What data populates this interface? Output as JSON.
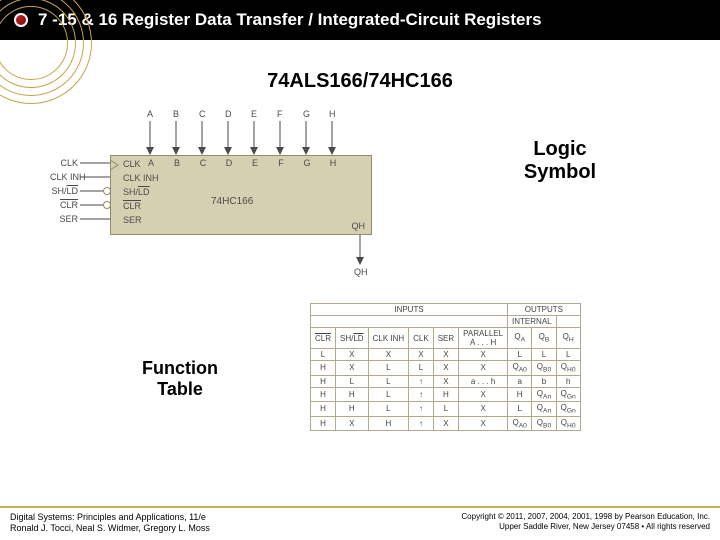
{
  "title": "7 -15  & 16 Register Data Transfer / Integrated-Circuit Registers",
  "chip_title": "74ALS166/74HC166",
  "part_name": "74HC166",
  "logic_label_l1": "Logic",
  "logic_label_l2": "Symbol",
  "fn_label_l1": "Function",
  "fn_label_l2": "Table",
  "top_pins": [
    "A",
    "B",
    "C",
    "D",
    "E",
    "F",
    "G",
    "H"
  ],
  "left_pins_ext": [
    "CLK",
    "CLK INH",
    "SH/LD",
    "CLR",
    "SER"
  ],
  "left_pins_int": [
    "CLK",
    "CLK INH",
    "SH/LD",
    "CLR",
    "SER"
  ],
  "overline_left": [
    false,
    false,
    true,
    true,
    false
  ],
  "out_sig": "QH",
  "colors": {
    "title_bg": "#000000",
    "title_fg": "#ffffff",
    "chip_fill": "#d6d0b3",
    "chip_border": "#938b6a",
    "ring": "#c9a24a",
    "table_border": "#b0aa8d",
    "bullet_a": "#b22222",
    "bullet_b": "#7a0000"
  },
  "ftable": {
    "group_inputs": "INPUTS",
    "group_outputs": "OUTPUTS",
    "group_internal": "INTERNAL",
    "inner_headers": [
      "CLR",
      "SH/LD",
      "CLK INH",
      "CLK",
      "SER",
      "PARALLEL A . . . H",
      "Q_A",
      "Q_B",
      "Q_H"
    ],
    "rows": [
      [
        "L",
        "X",
        "X",
        "X",
        "X",
        "X",
        "L",
        "L",
        "L"
      ],
      [
        "H",
        "X",
        "L",
        "L",
        "X",
        "X",
        "Q_A0",
        "Q_B0",
        "Q_H0"
      ],
      [
        "H",
        "L",
        "L",
        "↑",
        "X",
        "a . . . h",
        "a",
        "b",
        "h"
      ],
      [
        "H",
        "H",
        "L",
        "↑",
        "H",
        "X",
        "H",
        "Q_An",
        "Q_Gn"
      ],
      [
        "H",
        "H",
        "L",
        "↑",
        "L",
        "X",
        "L",
        "Q_An",
        "Q_Gn"
      ],
      [
        "H",
        "X",
        "H",
        "↑",
        "X",
        "X",
        "Q_A0",
        "Q_B0",
        "Q_H0"
      ]
    ]
  },
  "footer": {
    "book_title": "Digital Systems: Principles and Applications, 11/e",
    "authors": "Ronald J. Tocci, Neal S. Widmer, Gregory L. Moss",
    "copyright_l1": "Copyright © 2011, 2007, 2004, 2001, 1998 by Pearson Education, Inc.",
    "copyright_l2": "Upper Saddle River, New Jersey 07458 • All rights reserved"
  }
}
